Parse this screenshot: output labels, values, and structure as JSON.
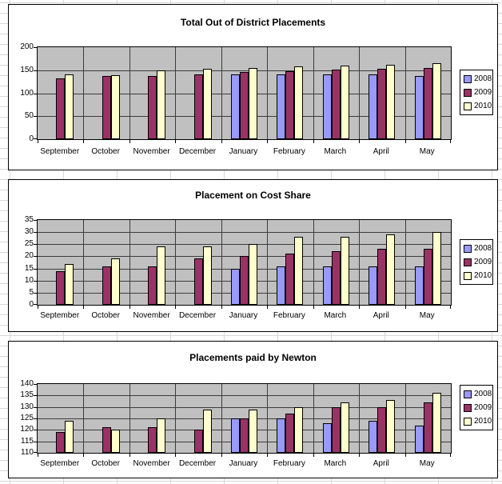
{
  "app": {
    "background_color": "#ffffff",
    "sheet_gridline_color": "#d8d8d8",
    "plot_background_color": "#c0c0c0",
    "gridline_color": "#3c3c3c",
    "bar_border_color": "#000000"
  },
  "chart_data": [
    {
      "type": "bar",
      "title": "Total Out of District Placements",
      "categories": [
        "September",
        "October",
        "November",
        "December",
        "January",
        "February",
        "March",
        "April",
        "May"
      ],
      "series": [
        {
          "name": "2008",
          "color": "#9999FF",
          "values": [
            null,
            null,
            null,
            null,
            140,
            141,
            140,
            140,
            138
          ]
        },
        {
          "name": "2009",
          "color": "#993366",
          "values": [
            133,
            138,
            138,
            140,
            146,
            148,
            151,
            153,
            155
          ]
        },
        {
          "name": "2010",
          "color": "#FFFFCC",
          "values": [
            141,
            139,
            149,
            153,
            155,
            158,
            160,
            162,
            165
          ]
        }
      ],
      "xlabel": "",
      "ylabel": "",
      "ylim": [
        0,
        200
      ],
      "ystep": 50,
      "yticks": [
        0,
        50,
        100,
        150,
        200
      ],
      "grid": true,
      "legend_position": "right"
    },
    {
      "type": "bar",
      "title": "Placement on Cost Share",
      "categories": [
        "September",
        "October",
        "November",
        "December",
        "January",
        "February",
        "March",
        "April",
        "May"
      ],
      "series": [
        {
          "name": "2008",
          "color": "#9999FF",
          "values": [
            null,
            null,
            null,
            null,
            15,
            16,
            16,
            16,
            16
          ]
        },
        {
          "name": "2009",
          "color": "#993366",
          "values": [
            14,
            16,
            16,
            19,
            20,
            21,
            22,
            23,
            23
          ]
        },
        {
          "name": "2010",
          "color": "#FFFFCC",
          "values": [
            17,
            19,
            24,
            24,
            25,
            28,
            28,
            29,
            30
          ]
        }
      ],
      "xlabel": "",
      "ylabel": "",
      "ylim": [
        0,
        35
      ],
      "ystep": 5,
      "yticks": [
        0,
        5,
        10,
        15,
        20,
        25,
        30,
        35
      ],
      "grid": true,
      "legend_position": "right"
    },
    {
      "type": "bar",
      "title": "Placements paid by Newton",
      "categories": [
        "September",
        "October",
        "November",
        "December",
        "January",
        "February",
        "March",
        "April",
        "May"
      ],
      "series": [
        {
          "name": "2008",
          "color": "#9999FF",
          "values": [
            null,
            null,
            null,
            null,
            125,
            125,
            123,
            124,
            122
          ]
        },
        {
          "name": "2009",
          "color": "#993366",
          "values": [
            119,
            121,
            121,
            120,
            125,
            127,
            130,
            130,
            132
          ]
        },
        {
          "name": "2010",
          "color": "#FFFFCC",
          "values": [
            124,
            120,
            125,
            129,
            129,
            130,
            132,
            133,
            136
          ]
        }
      ],
      "xlabel": "",
      "ylabel": "",
      "ylim": [
        110,
        140
      ],
      "ystep": 5,
      "yticks": [
        110,
        115,
        120,
        125,
        130,
        135,
        140
      ],
      "grid": true,
      "legend_position": "right"
    }
  ]
}
